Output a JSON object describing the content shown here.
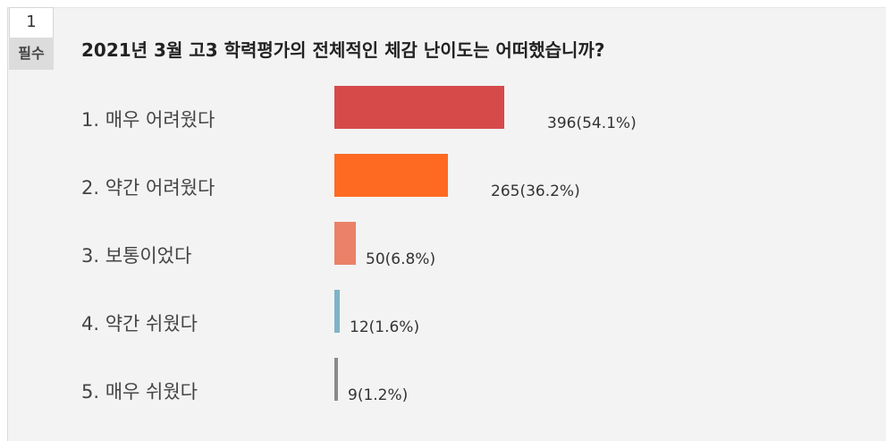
{
  "question": {
    "number": "1",
    "required_badge": "필수",
    "title": "2021년 3월 고3 학력평가의 전체적인 체감 난이도는 어떠했습니까?"
  },
  "chart_data": {
    "type": "bar",
    "orientation": "horizontal",
    "title": "2021년 3월 고3 학력평가의 전체적인 체감 난이도는 어떠했습니까?",
    "categories": [
      "1. 매우 어려웠다",
      "2. 약간 어려웠다",
      "3. 보통이었다",
      "4. 약간 쉬웠다",
      "5. 매우 쉬웠다"
    ],
    "values": [
      396,
      265,
      50,
      12,
      9
    ],
    "percents": [
      54.1,
      36.2,
      6.8,
      1.6,
      1.2
    ],
    "value_labels": [
      "396(54.1%)",
      "265(36.2%)",
      "50(6.8%)",
      "12(1.6%)",
      "9(1.2%)"
    ],
    "colors": [
      "#d64a4a",
      "#ff6a22",
      "#ea8168",
      "#7fb3c6",
      "#8a8a8a"
    ],
    "grid": false,
    "legend": "none"
  }
}
